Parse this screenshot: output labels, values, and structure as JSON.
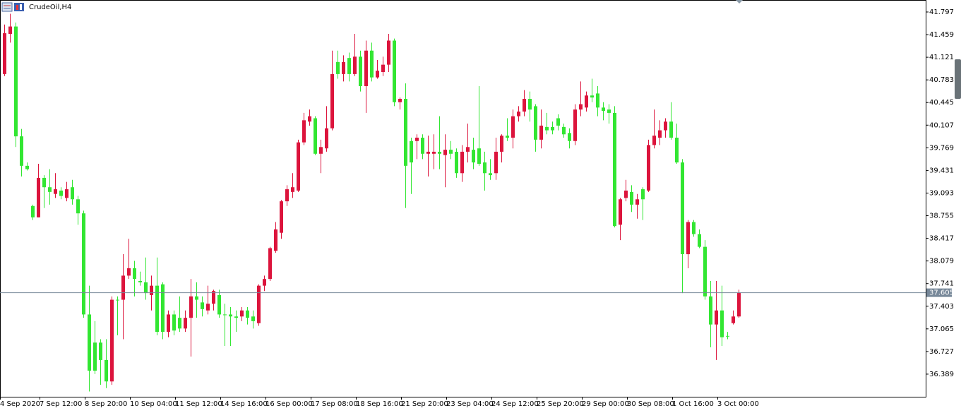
{
  "chart_data": {
    "type": "candlestick",
    "title": "CrudeOil,H4",
    "categories": [
      "4 Sep 2020",
      null,
      null,
      null,
      null,
      null,
      null,
      "7 Sep 12:00",
      null,
      null,
      null,
      null,
      null,
      null,
      null,
      "8 Sep 20:00",
      null,
      null,
      null,
      null,
      null,
      null,
      null,
      "10 Sep 04:00",
      null,
      null,
      null,
      null,
      null,
      null,
      null,
      "11 Sep 12:00",
      null,
      null,
      null,
      null,
      null,
      null,
      null,
      "14 Sep 16:00",
      null,
      null,
      null,
      null,
      null,
      null,
      null,
      "16 Sep 00:00",
      null,
      null,
      null,
      null,
      null,
      null,
      null,
      "17 Sep 08:00",
      null,
      null,
      null,
      null,
      null,
      null,
      null,
      "18 Sep 16:00",
      null,
      null,
      null,
      null,
      null,
      null,
      null,
      "21 Sep 20:00",
      null,
      null,
      null,
      null,
      null,
      null,
      null,
      "23 Sep 04:00",
      null,
      null,
      null,
      null,
      null,
      null,
      null,
      "24 Sep 12:00",
      null,
      null,
      null,
      null,
      null,
      null,
      null,
      "25 Sep 20:00",
      null,
      null,
      null,
      null,
      null,
      null,
      null,
      "29 Sep 00:00",
      null,
      null,
      null,
      null,
      null,
      null,
      null,
      "30 Sep 08:00",
      null,
      null,
      null,
      null,
      null,
      null,
      null,
      "1 Oct 16:00",
      null,
      null,
      null,
      null,
      null,
      null,
      null,
      "3 Oct 00:00",
      null,
      null,
      null
    ],
    "open": [
      40.87,
      41.47,
      41.58,
      39.94,
      39.5,
      38.9,
      38.73,
      39.32,
      39.18,
      39.08,
      39.13,
      39.02,
      39.18,
      39.0,
      38.79,
      37.28,
      36.86,
      36.86,
      36.6,
      36.28,
      37.5,
      37.5,
      37.86,
      37.97,
      37.78,
      37.76,
      37.57,
      37.71,
      37.73,
      37.02,
      37.28,
      37.23,
      37.07,
      37.23,
      37.55,
      37.46,
      37.34,
      37.44,
      37.57,
      37.28,
      37.28,
      37.25,
      37.25,
      37.34,
      37.25,
      37.15,
      37.71,
      37.81,
      38.23,
      38.5,
      38.97,
      39.11,
      39.13,
      39.85,
      40.16,
      40.21,
      39.68,
      39.76,
      40.06,
      41.05,
      40.87,
      41.11,
      40.87,
      41.13,
      40.69,
      41.22,
      40.82,
      40.9,
      41.01,
      41.37,
      40.45,
      40.5,
      39.87,
      39.87,
      39.92,
      39.68,
      39.68,
      39.71,
      39.66,
      39.74,
      39.71,
      39.39,
      39.71,
      39.74,
      39.76,
      39.55,
      39.39,
      39.39,
      39.71,
      39.95,
      39.92,
      40.24,
      40.31,
      40.5,
      40.39,
      39.89,
      40.08,
      40.08,
      40.21,
      40.08,
      39.99,
      39.87,
      40.34,
      40.37,
      40.55,
      40.58,
      40.37,
      40.34,
      40.29,
      38.62,
      39.02,
      39.11,
      38.92,
      39.15,
      39.13,
      39.81,
      39.92,
      40.03,
      40.16,
      39.92,
      39.55,
      38.18,
      38.66,
      38.48,
      38.29,
      37.55,
      37.13,
      37.34,
      36.96,
      37.15,
      37.25
    ],
    "high": [
      41.61,
      41.77,
      41.64,
      40.05,
      39.55,
      38.92,
      39.53,
      39.36,
      39.45,
      39.39,
      39.18,
      39.26,
      39.29,
      39.05,
      38.83,
      37.71,
      37.18,
      36.91,
      36.91,
      37.55,
      37.55,
      38.18,
      38.41,
      38.08,
      37.92,
      38.13,
      37.86,
      38.13,
      37.76,
      37.34,
      37.34,
      37.55,
      37.34,
      37.81,
      37.76,
      37.55,
      37.71,
      37.65,
      37.65,
      37.44,
      37.39,
      37.34,
      37.39,
      37.39,
      37.34,
      37.73,
      37.86,
      38.29,
      38.66,
      38.99,
      39.21,
      39.39,
      39.89,
      40.29,
      40.34,
      40.24,
      39.89,
      40.39,
      41.22,
      41.22,
      41.15,
      41.19,
      41.47,
      41.22,
      41.37,
      41.34,
      41.08,
      41.13,
      41.47,
      41.4,
      40.52,
      40.73,
      39.92,
      39.97,
      39.97,
      39.95,
      39.97,
      40.24,
      39.97,
      39.87,
      39.76,
      39.81,
      40.13,
      39.92,
      40.69,
      39.71,
      39.6,
      39.92,
      39.97,
      40.21,
      40.34,
      40.39,
      40.63,
      40.61,
      40.42,
      40.34,
      40.29,
      40.16,
      40.27,
      40.13,
      40.06,
      40.42,
      40.76,
      40.61,
      40.8,
      40.69,
      40.45,
      40.42,
      40.39,
      39.02,
      39.29,
      39.21,
      39.08,
      39.18,
      39.89,
      40.34,
      40.18,
      40.21,
      40.45,
      40.13,
      39.6,
      38.69,
      38.69,
      38.55,
      38.39,
      37.78,
      37.78,
      37.71,
      37.02,
      37.34,
      37.65
    ],
    "low": [
      40.84,
      41.34,
      39.78,
      39.34,
      39.43,
      38.69,
      38.73,
      38.87,
      38.92,
      39.02,
      39.0,
      38.97,
      38.92,
      38.62,
      37.23,
      36.13,
      36.39,
      36.23,
      36.18,
      36.23,
      36.97,
      36.91,
      37.81,
      37.55,
      37.71,
      37.5,
      37.34,
      36.97,
      36.91,
      36.94,
      36.97,
      37.02,
      37.02,
      36.65,
      37.23,
      37.25,
      37.28,
      37.34,
      37.23,
      36.81,
      36.81,
      37.02,
      37.18,
      37.13,
      37.07,
      37.11,
      37.63,
      37.78,
      38.2,
      38.41,
      38.9,
      39.02,
      39.11,
      39.81,
      40.1,
      39.66,
      39.39,
      39.71,
      40.03,
      40.8,
      40.76,
      40.76,
      40.84,
      40.61,
      40.29,
      40.76,
      40.8,
      40.84,
      40.9,
      40.39,
      40.34,
      38.87,
      39.08,
      39.6,
      39.6,
      39.34,
      39.45,
      39.45,
      39.18,
      39.6,
      39.32,
      39.26,
      39.55,
      39.45,
      39.5,
      39.13,
      39.29,
      39.29,
      39.55,
      39.87,
      39.76,
      40.16,
      40.24,
      40.16,
      39.71,
      39.76,
      39.97,
      39.97,
      40.03,
      39.92,
      39.76,
      39.81,
      40.24,
      40.31,
      40.45,
      40.24,
      40.18,
      40.13,
      38.58,
      38.39,
      38.97,
      38.81,
      38.71,
      38.69,
      39.11,
      39.76,
      39.81,
      39.92,
      39.89,
      39.53,
      37.6,
      37.97,
      38.44,
      38.27,
      37.5,
      36.79,
      36.6,
      36.81,
      36.91,
      37.13,
      37.23
    ],
    "close": [
      41.48,
      41.58,
      39.94,
      39.5,
      39.45,
      38.73,
      39.32,
      39.18,
      39.11,
      39.15,
      39.05,
      39.15,
      39.0,
      38.79,
      37.28,
      36.44,
      36.44,
      36.6,
      36.28,
      37.5,
      37.5,
      37.86,
      37.97,
      37.81,
      37.76,
      37.6,
      37.71,
      37.02,
      37.02,
      37.28,
      37.04,
      37.07,
      37.23,
      37.55,
      37.5,
      37.36,
      37.44,
      37.63,
      37.28,
      37.28,
      37.25,
      37.23,
      37.34,
      37.23,
      37.18,
      37.71,
      37.81,
      38.27,
      38.55,
      38.97,
      39.15,
      39.18,
      39.85,
      40.18,
      40.24,
      39.68,
      39.78,
      40.06,
      40.87,
      40.87,
      41.05,
      40.87,
      41.13,
      40.69,
      41.22,
      40.82,
      40.92,
      41.01,
      41.37,
      40.45,
      40.5,
      39.5,
      39.55,
      39.92,
      39.68,
      39.71,
      39.71,
      39.68,
      39.74,
      39.68,
      39.39,
      39.71,
      39.78,
      39.55,
      39.53,
      39.39,
      39.36,
      39.71,
      39.95,
      39.92,
      40.24,
      40.31,
      40.5,
      40.34,
      39.89,
      40.1,
      40.03,
      40.03,
      40.1,
      39.97,
      39.87,
      40.34,
      40.42,
      40.55,
      40.52,
      40.37,
      40.32,
      40.29,
      38.6,
      39.0,
      39.13,
      38.92,
      39.0,
      39.0,
      39.81,
      39.95,
      40.03,
      40.16,
      39.92,
      39.55,
      38.18,
      38.66,
      38.48,
      38.29,
      37.55,
      37.13,
      37.34,
      36.94,
      36.96,
      37.25,
      37.605
    ],
    "up_color": "#dc143c",
    "down_color": "#32e632",
    "current_price": 37.605,
    "current_price_color": "#778899",
    "ylim": [
      36.051,
      41.976
    ],
    "yticks": [
      41.797,
      41.459,
      41.121,
      40.783,
      40.445,
      40.107,
      39.769,
      39.431,
      39.093,
      38.755,
      38.417,
      38.079,
      37.741,
      37.403,
      37.065,
      36.727,
      36.389
    ],
    "grid": false
  }
}
